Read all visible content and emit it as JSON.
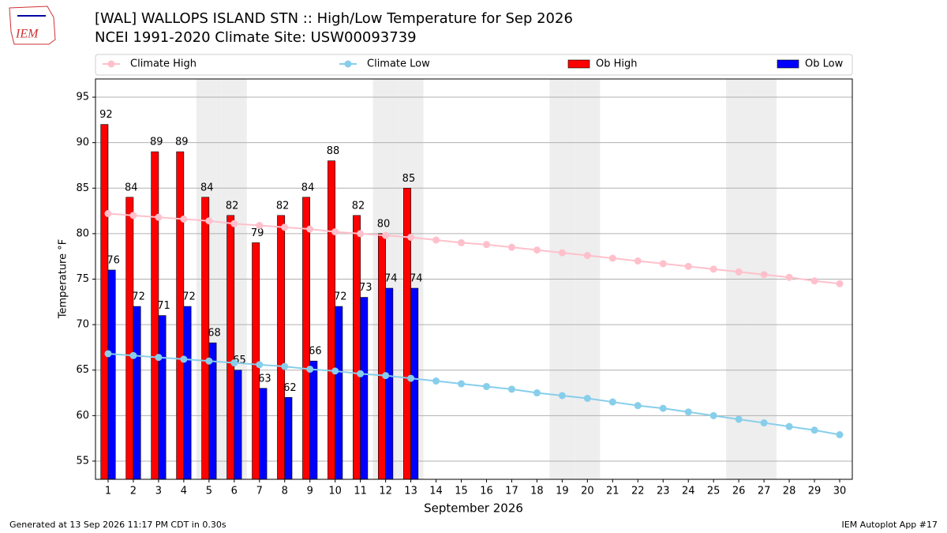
{
  "logo_text": "IEM",
  "footer": {
    "left": "Generated at 13 Sep 2026 11:17 PM CDT in 0.30s",
    "right": "IEM Autoplot App #17"
  },
  "chart_data": {
    "type": "bar_line",
    "title": "[WAL] WALLOPS ISLAND STN :: High/Low Temperature for Sep 2026",
    "subtitle": "NCEI 1991-2020 Climate Site: USW00093739",
    "x_label": "September 2026",
    "y_label": "Temperature °F",
    "x": [
      1,
      2,
      3,
      4,
      5,
      6,
      7,
      8,
      9,
      10,
      11,
      12,
      13,
      14,
      15,
      16,
      17,
      18,
      19,
      20,
      21,
      22,
      23,
      24,
      25,
      26,
      27,
      28,
      29,
      30
    ],
    "xlim": [
      0.5,
      30.5
    ],
    "xticks": [
      1,
      2,
      3,
      4,
      5,
      6,
      7,
      8,
      9,
      10,
      11,
      12,
      13,
      14,
      15,
      16,
      17,
      18,
      19,
      20,
      21,
      22,
      23,
      24,
      25,
      26,
      27,
      28,
      29,
      30
    ],
    "ylim": [
      53,
      97
    ],
    "yticks": [
      55,
      60,
      65,
      70,
      75,
      80,
      85,
      90,
      95
    ],
    "grid": true,
    "shaded_days": [
      5,
      6,
      12,
      13,
      19,
      20,
      26,
      27
    ],
    "series": [
      {
        "name": "Climate High",
        "kind": "line",
        "color": "#ffc0cb",
        "values": [
          82.2,
          82.0,
          81.8,
          81.6,
          81.4,
          81.1,
          80.9,
          80.7,
          80.5,
          80.2,
          80.0,
          79.8,
          79.6,
          79.3,
          79.0,
          78.8,
          78.5,
          78.2,
          77.9,
          77.6,
          77.3,
          77.0,
          76.7,
          76.4,
          76.1,
          75.8,
          75.5,
          75.2,
          74.8,
          74.5
        ]
      },
      {
        "name": "Climate Low",
        "kind": "line",
        "color": "#87ceeb",
        "values": [
          66.8,
          66.6,
          66.4,
          66.2,
          66.0,
          65.8,
          65.6,
          65.4,
          65.1,
          64.9,
          64.6,
          64.4,
          64.1,
          63.8,
          63.5,
          63.2,
          62.9,
          62.5,
          62.2,
          61.9,
          61.5,
          61.1,
          60.8,
          60.4,
          60.0,
          59.6,
          59.2,
          58.8,
          58.4,
          57.9
        ]
      },
      {
        "name": "Ob High",
        "kind": "bar",
        "color": "#ff0000",
        "values": [
          92,
          84,
          89,
          89,
          84,
          82,
          79,
          82,
          84,
          88,
          82,
          80,
          85,
          null,
          null,
          null,
          null,
          null,
          null,
          null,
          null,
          null,
          null,
          null,
          null,
          null,
          null,
          null,
          null,
          null
        ]
      },
      {
        "name": "Ob Low",
        "kind": "bar",
        "color": "#0000ff",
        "values": [
          76,
          72,
          71,
          72,
          68,
          65,
          63,
          62,
          66,
          72,
          73,
          74,
          74,
          null,
          null,
          null,
          null,
          null,
          null,
          null,
          null,
          null,
          null,
          null,
          null,
          null,
          null,
          null,
          null,
          null
        ]
      }
    ]
  }
}
